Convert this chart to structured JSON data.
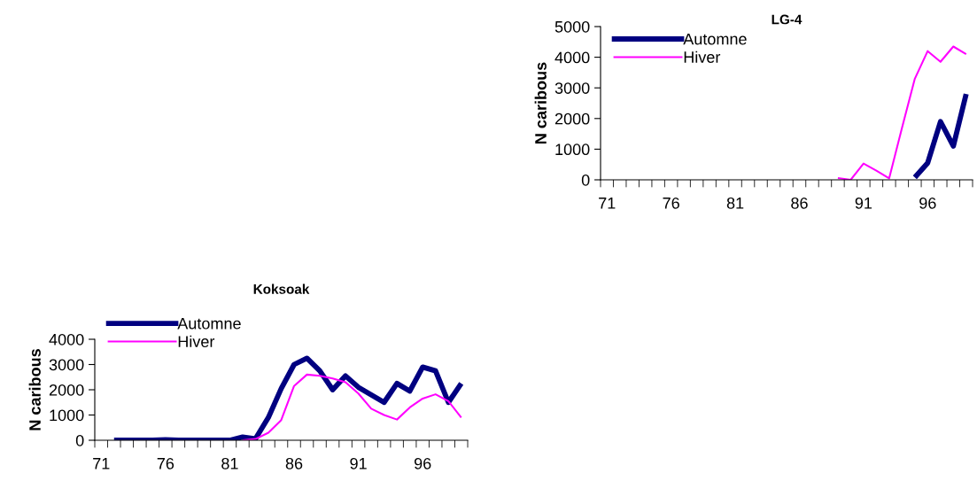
{
  "chart_data": [
    {
      "type": "line",
      "title": "LG-4",
      "ylabel": "N caribous",
      "categories": [
        "71",
        null,
        null,
        null,
        null,
        "76",
        null,
        null,
        null,
        null,
        "81",
        null,
        null,
        null,
        null,
        "86",
        null,
        null,
        null,
        null,
        "91",
        null,
        null,
        null,
        null,
        "96",
        null,
        null,
        null
      ],
      "series": [
        {
          "name": "Automne",
          "color": "#000080",
          "values": [
            null,
            null,
            null,
            null,
            null,
            null,
            null,
            null,
            null,
            null,
            null,
            null,
            null,
            null,
            null,
            null,
            null,
            null,
            null,
            null,
            null,
            null,
            null,
            null,
            80,
            550,
            1900,
            1100,
            2800
          ]
        },
        {
          "name": "Hiver",
          "color": "#ff00ff",
          "values": [
            null,
            null,
            null,
            null,
            null,
            null,
            null,
            null,
            null,
            null,
            null,
            null,
            null,
            null,
            null,
            null,
            null,
            null,
            60,
            0,
            530,
            300,
            50,
            1700,
            3300,
            4200,
            3850,
            4350,
            4100
          ]
        }
      ],
      "ylim": [
        0,
        5000
      ],
      "yticks": [
        0,
        1000,
        2000,
        3000,
        4000,
        5000
      ],
      "grid": false,
      "legend": "top left",
      "marker": "none",
      "line_style": "solid"
    },
    {
      "type": "line",
      "title": "Koksoak",
      "ylabel": "N caribous",
      "categories": [
        "71",
        null,
        null,
        null,
        null,
        "76",
        null,
        null,
        null,
        null,
        "81",
        null,
        null,
        null,
        null,
        "86",
        null,
        null,
        null,
        null,
        "91",
        null,
        null,
        null,
        null,
        "96",
        null,
        null,
        null
      ],
      "series": [
        {
          "name": "Automne",
          "color": "#000080",
          "values": [
            null,
            0,
            0,
            0,
            0,
            20,
            0,
            0,
            0,
            0,
            0,
            130,
            60,
            900,
            2050,
            3000,
            3250,
            2750,
            2000,
            2550,
            2100,
            1800,
            1500,
            2250,
            1950,
            2900,
            2750,
            1500,
            2250
          ]
        },
        {
          "name": "Hiver",
          "color": "#ff00ff",
          "values": [
            null,
            null,
            null,
            null,
            null,
            null,
            null,
            null,
            null,
            null,
            null,
            0,
            50,
            300,
            800,
            2150,
            2600,
            2550,
            2450,
            2300,
            1850,
            1250,
            1000,
            820,
            1300,
            1650,
            1820,
            1550,
            900
          ]
        }
      ],
      "ylim": [
        0,
        4000
      ],
      "yticks": [
        0,
        1000,
        2000,
        3000,
        4000
      ],
      "grid": false,
      "legend": "top left",
      "marker": "none",
      "line_style": "solid"
    }
  ]
}
